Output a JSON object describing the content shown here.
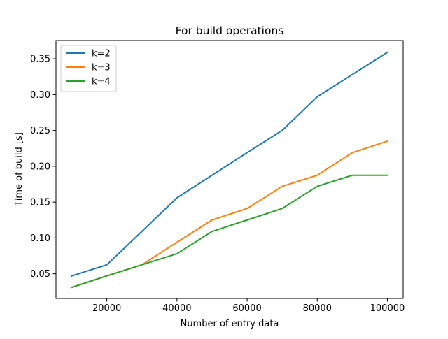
{
  "chart_data": {
    "type": "line",
    "title": "For build operations",
    "xlabel": "Number of entry data",
    "ylabel": "Time of build [s]",
    "x": [
      10000,
      20000,
      30000,
      40000,
      50000,
      60000,
      70000,
      80000,
      90000,
      100000
    ],
    "xlim": [
      5500,
      104500
    ],
    "ylim": [
      0.0155,
      0.3755
    ],
    "xticks": [
      20000,
      40000,
      60000,
      80000,
      100000
    ],
    "xtick_labels": [
      "20000",
      "40000",
      "60000",
      "80000",
      "100000"
    ],
    "yticks": [
      0.05,
      0.1,
      0.15,
      0.2,
      0.25,
      0.3,
      0.35
    ],
    "ytick_labels": [
      "0.05",
      "0.10",
      "0.15",
      "0.20",
      "0.25",
      "0.30",
      "0.35"
    ],
    "grid": false,
    "legend_position": "top-left",
    "series": [
      {
        "name": "k=2",
        "color": "#1f77b4",
        "values": [
          0.047,
          0.0625,
          0.109,
          0.156,
          0.1875,
          0.219,
          0.25,
          0.297,
          0.328,
          0.359
        ]
      },
      {
        "name": "k=3",
        "color": "#ff7f0e",
        "values": [
          0.031,
          0.047,
          0.0625,
          0.094,
          0.125,
          0.141,
          0.172,
          0.1875,
          0.219,
          0.235
        ]
      },
      {
        "name": "k=4",
        "color": "#2ca02c",
        "values": [
          0.031,
          0.047,
          0.0625,
          0.078,
          0.109,
          0.125,
          0.141,
          0.172,
          0.1875,
          0.1875
        ]
      }
    ]
  }
}
